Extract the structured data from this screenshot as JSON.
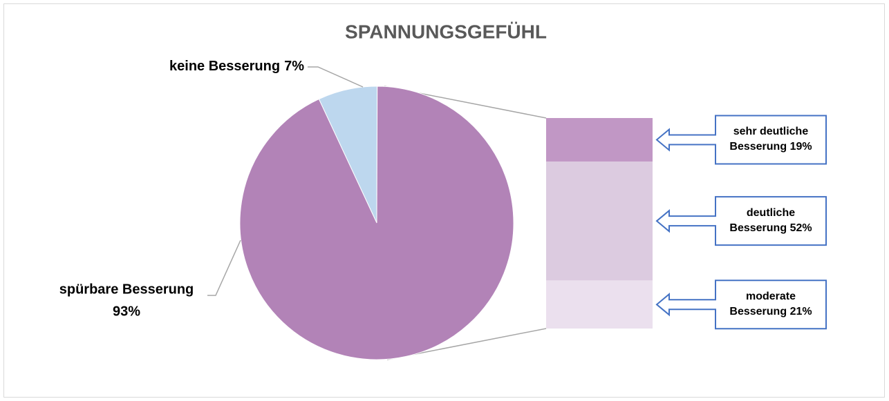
{
  "chart_data": {
    "type": "pie-of-bar",
    "title": "SPANNUNGSGEFÜHL",
    "categories": [
      "keine Besserung",
      "spürbare Besserung"
    ],
    "values": [
      7,
      93
    ],
    "value_labels": [
      "7%",
      "93%"
    ],
    "colors": [
      "#bdd7ee",
      "#b283b7"
    ],
    "breakdown": {
      "categories": [
        "sehr deutliche Besserung",
        "deutliche Besserung",
        "moderate Besserung"
      ],
      "values": [
        19,
        52,
        21
      ],
      "value_labels": [
        "19%",
        "52%",
        "21%"
      ],
      "colors": [
        "#c197c5",
        "#dccbe0",
        "#ebe0ee"
      ]
    }
  }
}
